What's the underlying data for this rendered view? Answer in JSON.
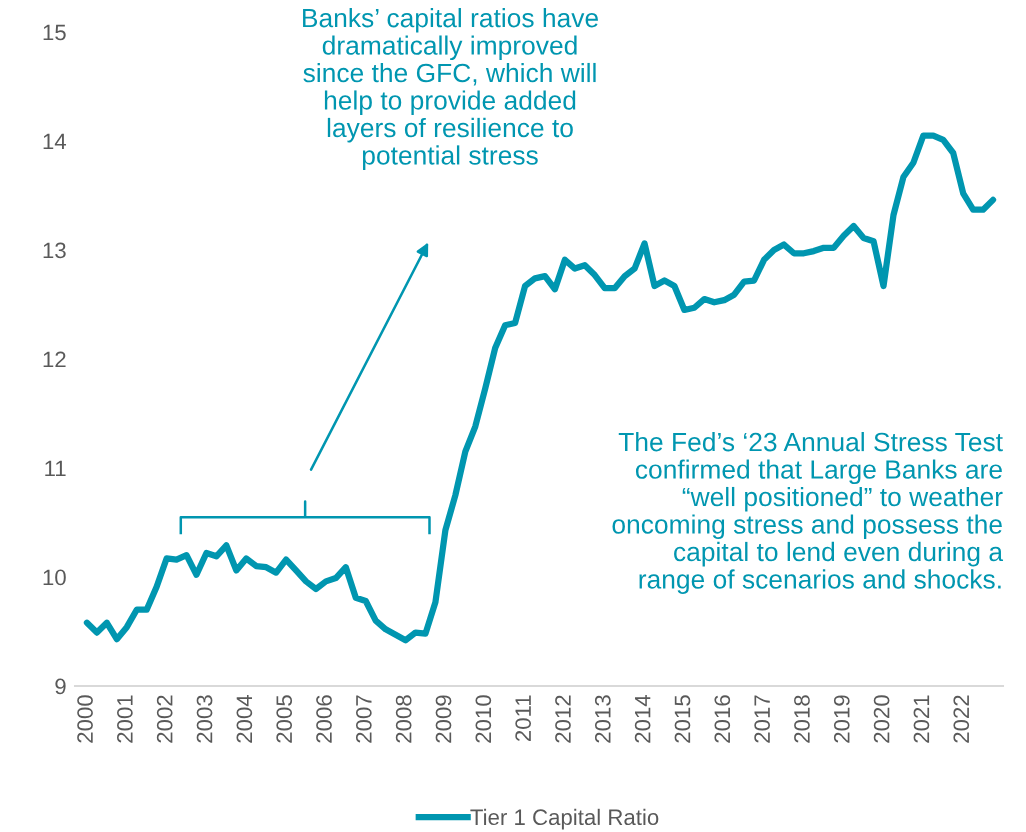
{
  "chart_data": {
    "type": "line",
    "x": [
      2000,
      2000.25,
      2000.5,
      2000.75,
      2001,
      2001.25,
      2001.5,
      2001.75,
      2002,
      2002.25,
      2002.5,
      2002.75,
      2003,
      2003.25,
      2003.5,
      2003.75,
      2004,
      2004.25,
      2004.5,
      2004.75,
      2005,
      2005.25,
      2005.5,
      2005.75,
      2006,
      2006.25,
      2006.5,
      2006.75,
      2007,
      2007.25,
      2007.5,
      2007.75,
      2008,
      2008.25,
      2008.5,
      2008.75,
      2009,
      2009.25,
      2009.5,
      2009.75,
      2010,
      2010.25,
      2010.5,
      2010.75,
      2011,
      2011.25,
      2011.5,
      2011.75,
      2012,
      2012.25,
      2012.5,
      2012.75,
      2013,
      2013.25,
      2013.5,
      2013.75,
      2014,
      2014.25,
      2014.5,
      2014.75,
      2015,
      2015.25,
      2015.5,
      2015.75,
      2016,
      2016.25,
      2016.5,
      2016.75,
      2017,
      2017.25,
      2017.5,
      2017.75,
      2018,
      2018.25,
      2018.5,
      2018.75,
      2019,
      2019.25,
      2019.5,
      2019.75,
      2020,
      2020.25,
      2020.5,
      2020.75,
      2021,
      2021.25,
      2021.5,
      2021.75,
      2022,
      2022.25,
      2022.5,
      2022.75
    ],
    "series": [
      {
        "name": "Tier 1 Capital Ratio",
        "color": "#0096b0",
        "values": [
          9.58,
          9.49,
          9.58,
          9.43,
          9.54,
          9.7,
          9.7,
          9.91,
          10.17,
          10.16,
          10.2,
          10.02,
          10.22,
          10.19,
          10.29,
          10.06,
          10.17,
          10.1,
          10.09,
          10.04,
          10.16,
          10.06,
          9.96,
          9.89,
          9.96,
          9.99,
          10.09,
          9.81,
          9.78,
          9.6,
          9.52,
          9.47,
          9.42,
          9.49,
          9.48,
          9.77,
          10.43,
          10.75,
          11.15,
          11.38,
          11.73,
          12.1,
          12.31,
          12.33,
          12.67,
          12.74,
          12.76,
          12.64,
          12.91,
          12.83,
          12.86,
          12.77,
          12.65,
          12.65,
          12.76,
          12.83,
          13.06,
          12.67,
          12.72,
          12.67,
          12.45,
          12.47,
          12.55,
          12.52,
          12.54,
          12.59,
          12.71,
          12.72,
          12.91,
          13.0,
          13.05,
          12.97,
          12.97,
          12.99,
          13.02,
          13.02,
          13.13,
          13.22,
          13.11,
          13.08,
          12.67,
          13.32,
          13.67,
          13.8,
          14.05,
          14.05,
          14.01,
          13.89,
          13.52,
          13.37,
          13.37,
          13.46
        ]
      }
    ],
    "xlim": [
      1999.7,
      2023.0
    ],
    "xticks": [
      2000,
      2001,
      2002,
      2003,
      2004,
      2005,
      2006,
      2007,
      2008,
      2009,
      2010,
      2011,
      2012,
      2013,
      2014,
      2015,
      2016,
      2017,
      2018,
      2019,
      2020,
      2021,
      2022
    ],
    "ylim": [
      9,
      15
    ],
    "yticks": [
      9,
      10,
      11,
      12,
      13,
      14,
      15
    ],
    "grid": false,
    "legend": "bottom",
    "marker": "none",
    "line_style": "solid",
    "annotations": [
      "Banks’ capital ratios have\ndramatically improved\nsince the GFC, which will\nhelp to provide added\nlayers of resilience to\npotential stress",
      "The Fed’s ‘23 Annual Stress Test\nconfirmed that Large Banks are\n“well positioned” to weather\noncoming stress and possess the\ncapital to lend even during a\nrange of scenarios and shocks."
    ]
  }
}
